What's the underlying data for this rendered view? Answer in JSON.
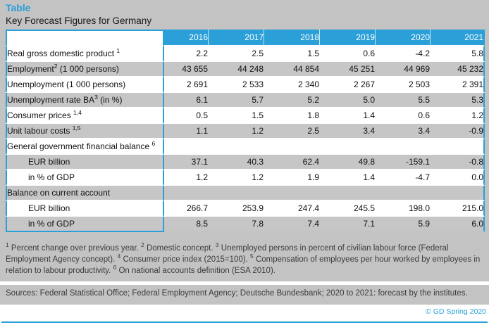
{
  "page": {
    "title": "Table",
    "subtitle": "Key Forecast Figures for Germany",
    "sources": "Sources: Federal Statistical Office; Federal Employment Agency; Deutsche Bundesbank; 2020 to 2021: forecast by the institutes.",
    "copyright": "© GD Spring 2020"
  },
  "colors": {
    "accent_blue": "#2a9fd8",
    "page_gray": "#c3c3c3",
    "row_gray": "#c6c6c6",
    "row_white": "#ffffff",
    "footnote_text": "#3b3b3b"
  },
  "table": {
    "years": [
      "2016",
      "2017",
      "2018",
      "2019",
      "2020",
      "2021"
    ],
    "rows": [
      {
        "pre": "Real gross domestic product ",
        "sup": "1",
        "post": "",
        "indent": false,
        "values": [
          "2.2",
          "2.5",
          "1.5",
          "0.6",
          "-4.2",
          "5.8"
        ]
      },
      {
        "pre": "Employment",
        "sup": "2",
        "post": " (1 000 persons)",
        "indent": false,
        "values": [
          "43 655",
          "44 248",
          "44 854",
          "45 251",
          "44 969",
          "45 232"
        ]
      },
      {
        "pre": "Unemployment (1 000 persons)",
        "sup": "",
        "post": "",
        "indent": false,
        "values": [
          "2 691",
          "2 533",
          "2 340",
          "2 267",
          "2 503",
          "2 391"
        ]
      },
      {
        "pre": "Unemployment rate BA",
        "sup": "3",
        "post": " (in %)",
        "indent": false,
        "values": [
          "6.1",
          "5.7",
          "5.2",
          "5.0",
          "5.5",
          "5.3"
        ]
      },
      {
        "pre": "Consumer prices ",
        "sup": "1,4",
        "post": "",
        "indent": false,
        "values": [
          "0.5",
          "1.5",
          "1.8",
          "1.4",
          "0.6",
          "1.2"
        ]
      },
      {
        "pre": "Unit labour costs ",
        "sup": "1,5",
        "post": "",
        "indent": false,
        "values": [
          "1.1",
          "1.2",
          "2.5",
          "3.4",
          "3.4",
          "-0.9"
        ]
      },
      {
        "pre": "General government financial balance ",
        "sup": "6",
        "post": "",
        "indent": false,
        "values": [
          "",
          "",
          "",
          "",
          "",
          ""
        ]
      },
      {
        "pre": "EUR billion",
        "sup": "",
        "post": "",
        "indent": true,
        "values": [
          "37.1",
          "40.3",
          "62.4",
          "49.8",
          "-159.1",
          "-0.8"
        ]
      },
      {
        "pre": "in % of GDP",
        "sup": "",
        "post": "",
        "indent": true,
        "values": [
          "1.2",
          "1.2",
          "1.9",
          "1.4",
          "-4.7",
          "0.0"
        ]
      },
      {
        "pre": "Balance on current account",
        "sup": "",
        "post": "",
        "indent": false,
        "values": [
          "",
          "",
          "",
          "",
          "",
          ""
        ]
      },
      {
        "pre": "EUR billion",
        "sup": "",
        "post": "",
        "indent": true,
        "values": [
          "266.7",
          "253.9",
          "247.4",
          "245.5",
          "198.0",
          "215.0"
        ]
      },
      {
        "pre": "in % of GDP",
        "sup": "",
        "post": "",
        "indent": true,
        "values": [
          "8.5",
          "7.8",
          "7.4",
          "7.1",
          "5.9",
          "6.0"
        ]
      }
    ]
  },
  "footnotes": [
    {
      "sup": "1",
      "text": "Percent change over previous year."
    },
    {
      "sup": "2",
      "text": "Domestic concept."
    },
    {
      "sup": "3",
      "text": "Unemployed persons in percent of civilian labour force (Federal Employment Agency concept)."
    },
    {
      "sup": "4",
      "text": "Consumer price index (2015=100)."
    },
    {
      "sup": "5",
      "text": "Compensation of employees per hour worked by employees in relation to labour productivity."
    },
    {
      "sup": "6",
      "text": "On national accounts definition (ESA 2010)."
    }
  ],
  "chart_data": {
    "type": "table",
    "title": "Key Forecast Figures for Germany",
    "columns": [
      "2016",
      "2017",
      "2018",
      "2019",
      "2020",
      "2021"
    ],
    "rows": [
      {
        "label": "Real gross domestic product",
        "values": [
          2.2,
          2.5,
          1.5,
          0.6,
          -4.2,
          5.8
        ]
      },
      {
        "label": "Employment (1 000 persons)",
        "values": [
          43655,
          44248,
          44854,
          45251,
          44969,
          45232
        ]
      },
      {
        "label": "Unemployment (1 000 persons)",
        "values": [
          2691,
          2533,
          2340,
          2267,
          2503,
          2391
        ]
      },
      {
        "label": "Unemployment rate BA (in %)",
        "values": [
          6.1,
          5.7,
          5.2,
          5.0,
          5.5,
          5.3
        ]
      },
      {
        "label": "Consumer prices",
        "values": [
          0.5,
          1.5,
          1.8,
          1.4,
          0.6,
          1.2
        ]
      },
      {
        "label": "Unit labour costs",
        "values": [
          1.1,
          1.2,
          2.5,
          3.4,
          3.4,
          -0.9
        ]
      },
      {
        "label": "General government financial balance - EUR billion",
        "values": [
          37.1,
          40.3,
          62.4,
          49.8,
          -159.1,
          -0.8
        ]
      },
      {
        "label": "General government financial balance - in % of GDP",
        "values": [
          1.2,
          1.2,
          1.9,
          1.4,
          -4.7,
          0.0
        ]
      },
      {
        "label": "Balance on current account - EUR billion",
        "values": [
          266.7,
          253.9,
          247.4,
          245.5,
          198.0,
          215.0
        ]
      },
      {
        "label": "Balance on current account - in % of GDP",
        "values": [
          8.5,
          7.8,
          7.4,
          7.1,
          5.9,
          6.0
        ]
      }
    ],
    "notes": "2020 to 2021 are forecasts by the institutes"
  }
}
